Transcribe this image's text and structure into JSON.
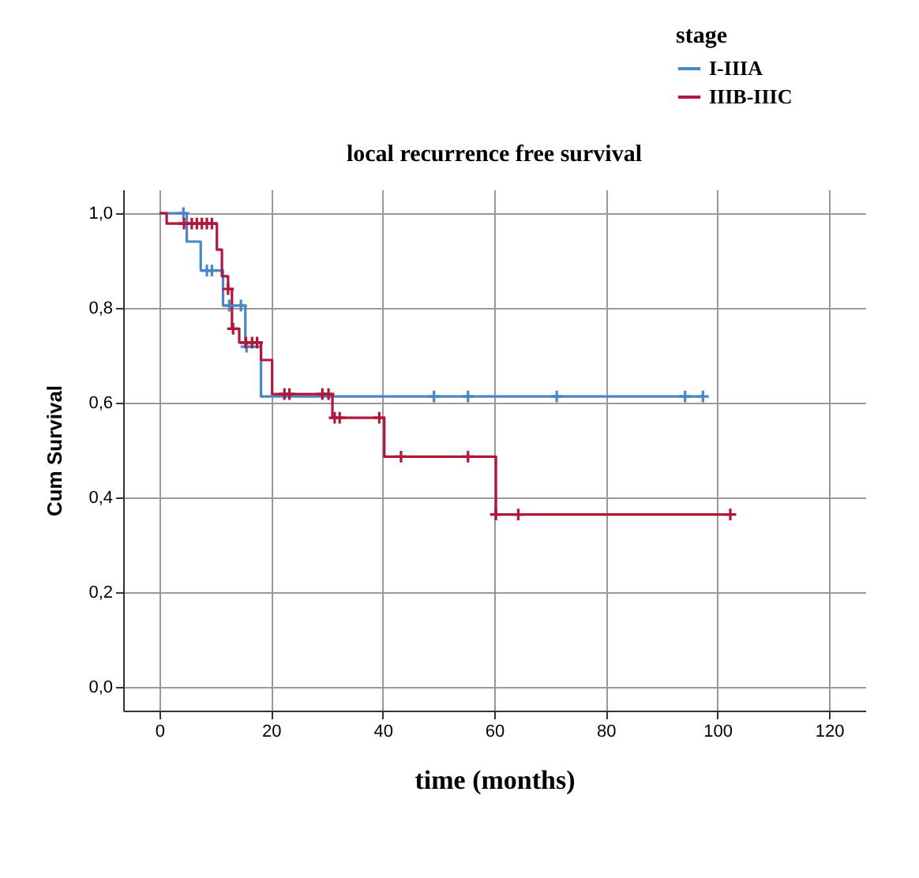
{
  "chart_data": {
    "type": "step",
    "title": "local recurrence free survival",
    "xlabel": "time (months)",
    "ylabel": "Cum Survival",
    "legend_title": "stage",
    "legend": "top right",
    "grid": true,
    "xlim": [
      -6.5,
      126.5
    ],
    "xticks": [
      0,
      20,
      40,
      60,
      80,
      100,
      120
    ],
    "ylim": [
      -0.05,
      1.05
    ],
    "yticks": [
      {
        "value": 0,
        "label": "0,0"
      },
      {
        "value": 0.2,
        "label": "0,2"
      },
      {
        "value": 0.4,
        "label": "0,4"
      },
      {
        "value": 0.6,
        "label": "0,6"
      },
      {
        "value": 0.8,
        "label": "0,8"
      },
      {
        "value": 1,
        "label": "1,0"
      }
    ],
    "series": [
      {
        "name": "I-IIIA",
        "color": "#4a86c5",
        "x": [
          0,
          4.9,
          7.4,
          11.4,
          15.4,
          18.2,
          97.4
        ],
        "values": [
          1,
          0.94,
          0.879,
          0.805,
          0.718,
          0.613,
          0.613
        ]
      },
      {
        "name": "IIIB-IIIC",
        "color": "#b0173a",
        "x": [
          0,
          1.3,
          10.3,
          11.2,
          12.3,
          13,
          14.3,
          18.2,
          20.2,
          31,
          40.3,
          60.3,
          102.3
        ],
        "values": [
          1,
          0.978,
          0.923,
          0.867,
          0.84,
          0.756,
          0.727,
          0.69,
          0.618,
          0.568,
          0.486,
          0.364,
          0.364
        ]
      },
      {
        "color": "#4a86c5",
        "type": "scatter",
        "marker": "cross",
        "x": [
          4.3,
          8.5,
          9.4,
          12.5,
          14.6,
          15.6,
          49.2,
          55.3,
          71.2,
          94.2,
          97.4
        ],
        "values": [
          1,
          0.879,
          0.879,
          0.805,
          0.805,
          0.718,
          0.613,
          0.613,
          0.613,
          0.613,
          0.613
        ]
      },
      {
        "color": "#b0173a",
        "type": "scatter",
        "marker": "cross",
        "x": [
          4.4,
          5.8,
          6.7,
          7.6,
          8.5,
          9.4,
          12.3,
          13.2,
          15.5,
          16.6,
          17.5,
          22.4,
          23.3,
          29.2,
          30.3,
          31.4,
          32.3,
          39.4,
          43.3,
          55.3,
          60.3,
          64.3,
          102.3
        ],
        "values": [
          0.978,
          0.978,
          0.978,
          0.978,
          0.978,
          0.978,
          0.84,
          0.756,
          0.727,
          0.727,
          0.727,
          0.618,
          0.618,
          0.618,
          0.618,
          0.568,
          0.568,
          0.568,
          0.486,
          0.486,
          0.364,
          0.364,
          0.364
        ]
      }
    ]
  }
}
